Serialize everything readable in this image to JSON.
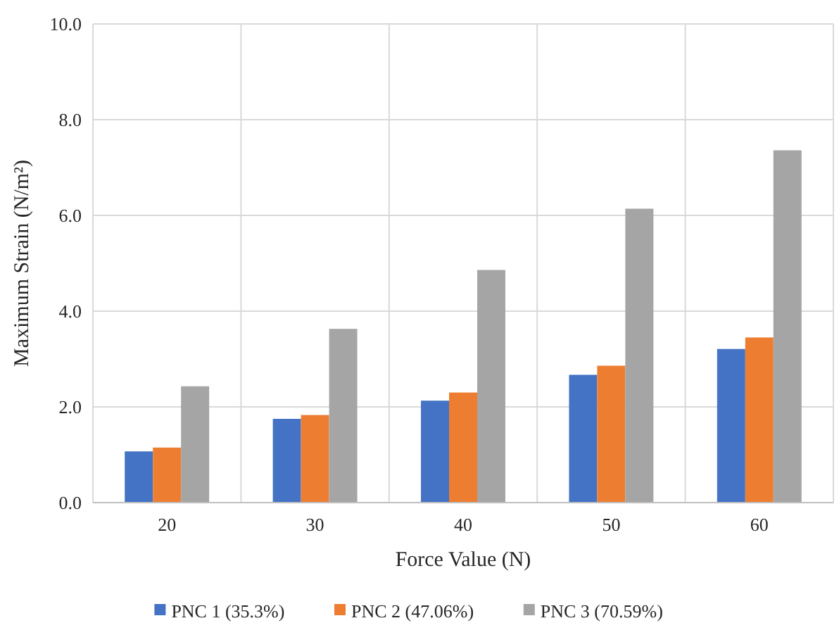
{
  "chart_data": {
    "type": "bar",
    "xlabel": "Force Value (N)",
    "ylabel": "Maximum Strain (N/m²)",
    "categories": [
      "20",
      "30",
      "40",
      "50",
      "60"
    ],
    "series": [
      {
        "name": "PNC 1 (35.3%)",
        "color": "#4472c4",
        "values": [
          1.07,
          1.75,
          2.13,
          2.67,
          3.21
        ]
      },
      {
        "name": "PNC 2 (47.06%)",
        "color": "#ed7d31",
        "values": [
          1.15,
          1.83,
          2.3,
          2.86,
          3.45
        ]
      },
      {
        "name": "PNC 3 (70.59%)",
        "color": "#a5a5a5",
        "values": [
          2.43,
          3.63,
          4.86,
          6.14,
          7.36
        ]
      }
    ],
    "ylim": [
      0,
      10
    ],
    "yticks": [
      {
        "value": 0,
        "label": "0.0"
      },
      {
        "value": 2,
        "label": "2.0"
      },
      {
        "value": 4,
        "label": "4.0"
      },
      {
        "value": 6,
        "label": "6.0"
      },
      {
        "value": 8,
        "label": "8.0"
      },
      {
        "value": 10,
        "label": "10.0"
      }
    ],
    "grid": true,
    "legend": "bottom"
  }
}
